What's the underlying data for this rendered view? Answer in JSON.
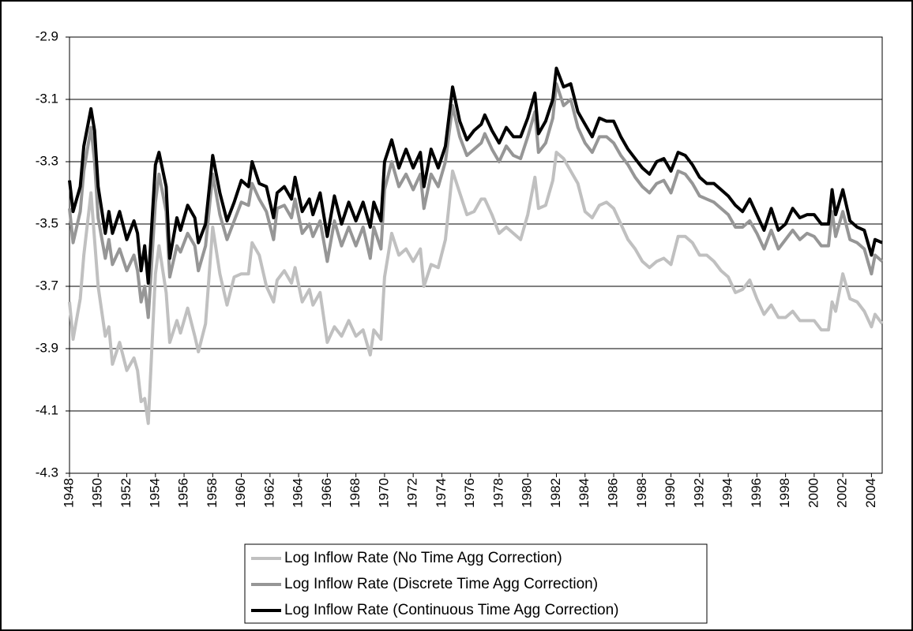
{
  "chart_data": {
    "type": "line",
    "x": [
      1948,
      1948.25,
      1948.75,
      1949,
      1949.5,
      1949.75,
      1950,
      1950.5,
      1950.75,
      1951,
      1951.5,
      1952,
      1952.5,
      1952.75,
      1953,
      1953.25,
      1953.5,
      1954,
      1954.25,
      1954.75,
      1955,
      1955.5,
      1955.75,
      1956.25,
      1956.75,
      1957,
      1957.5,
      1958,
      1958.5,
      1959,
      1959.5,
      1960,
      1960.5,
      1960.75,
      1961.25,
      1961.75,
      1962.25,
      1962.5,
      1963,
      1963.5,
      1963.75,
      1964.25,
      1964.75,
      1965,
      1965.5,
      1966,
      1966.5,
      1967,
      1967.5,
      1968,
      1968.5,
      1969,
      1969.25,
      1969.75,
      1970,
      1970.5,
      1971,
      1971.5,
      1972,
      1972.5,
      1972.75,
      1973.25,
      1973.75,
      1974.25,
      1974.75,
      1975.25,
      1975.75,
      1976.25,
      1976.75,
      1977,
      1977.5,
      1978,
      1978.5,
      1979,
      1979.5,
      1980,
      1980.5,
      1980.75,
      1981.25,
      1981.75,
      1982,
      1982.5,
      1983,
      1983.5,
      1984,
      1984.5,
      1985,
      1985.5,
      1986,
      1986.5,
      1987,
      1987.5,
      1988,
      1988.5,
      1989,
      1989.5,
      1990,
      1990.5,
      1991,
      1991.5,
      1992,
      1992.5,
      1993,
      1993.5,
      1994,
      1994.5,
      1995,
      1995.5,
      1996,
      1996.5,
      1997,
      1997.5,
      1998,
      1998.5,
      1999,
      1999.5,
      2000,
      2000.5,
      2001,
      2001.25,
      2001.5,
      2002,
      2002.5,
      2003,
      2003.5,
      2004,
      2004.25,
      2004.75
    ],
    "series": [
      {
        "name": "Log Inflow Rate (No Time Agg Correction)",
        "color": "#c0c0c0",
        "values": [
          -3.75,
          -3.87,
          -3.74,
          -3.6,
          -3.4,
          -3.55,
          -3.7,
          -3.86,
          -3.83,
          -3.95,
          -3.88,
          -3.97,
          -3.93,
          -3.97,
          -4.07,
          -4.06,
          -4.14,
          -3.66,
          -3.57,
          -3.72,
          -3.88,
          -3.81,
          -3.85,
          -3.77,
          -3.86,
          -3.91,
          -3.82,
          -3.51,
          -3.66,
          -3.76,
          -3.67,
          -3.66,
          -3.66,
          -3.56,
          -3.6,
          -3.7,
          -3.75,
          -3.68,
          -3.65,
          -3.69,
          -3.64,
          -3.75,
          -3.71,
          -3.76,
          -3.72,
          -3.88,
          -3.83,
          -3.86,
          -3.81,
          -3.86,
          -3.84,
          -3.92,
          -3.84,
          -3.87,
          -3.67,
          -3.53,
          -3.6,
          -3.58,
          -3.62,
          -3.58,
          -3.7,
          -3.63,
          -3.64,
          -3.55,
          -3.33,
          -3.4,
          -3.47,
          -3.46,
          -3.42,
          -3.42,
          -3.47,
          -3.53,
          -3.51,
          -3.53,
          -3.55,
          -3.47,
          -3.35,
          -3.45,
          -3.44,
          -3.36,
          -3.27,
          -3.29,
          -3.33,
          -3.37,
          -3.46,
          -3.48,
          -3.44,
          -3.43,
          -3.45,
          -3.5,
          -3.55,
          -3.58,
          -3.62,
          -3.64,
          -3.62,
          -3.61,
          -3.63,
          -3.54,
          -3.54,
          -3.56,
          -3.6,
          -3.6,
          -3.62,
          -3.65,
          -3.67,
          -3.72,
          -3.71,
          -3.68,
          -3.74,
          -3.79,
          -3.76,
          -3.8,
          -3.8,
          -3.78,
          -3.81,
          -3.81,
          -3.81,
          -3.84,
          -3.84,
          -3.75,
          -3.78,
          -3.66,
          -3.74,
          -3.75,
          -3.78,
          -3.83,
          -3.79,
          -3.82
        ]
      },
      {
        "name": "Log Inflow Rate (Discrete Time Agg Correction)",
        "color": "#969696",
        "values": [
          -3.45,
          -3.56,
          -3.46,
          -3.33,
          -3.19,
          -3.3,
          -3.48,
          -3.61,
          -3.55,
          -3.63,
          -3.58,
          -3.65,
          -3.6,
          -3.65,
          -3.75,
          -3.7,
          -3.8,
          -3.43,
          -3.34,
          -3.46,
          -3.67,
          -3.57,
          -3.59,
          -3.53,
          -3.57,
          -3.65,
          -3.57,
          -3.34,
          -3.47,
          -3.55,
          -3.49,
          -3.43,
          -3.44,
          -3.37,
          -3.42,
          -3.46,
          -3.55,
          -3.45,
          -3.44,
          -3.48,
          -3.42,
          -3.53,
          -3.5,
          -3.54,
          -3.49,
          -3.62,
          -3.49,
          -3.57,
          -3.51,
          -3.57,
          -3.51,
          -3.61,
          -3.51,
          -3.58,
          -3.39,
          -3.3,
          -3.38,
          -3.34,
          -3.39,
          -3.34,
          -3.45,
          -3.34,
          -3.38,
          -3.3,
          -3.12,
          -3.22,
          -3.28,
          -3.26,
          -3.24,
          -3.21,
          -3.26,
          -3.3,
          -3.25,
          -3.28,
          -3.29,
          -3.22,
          -3.14,
          -3.27,
          -3.24,
          -3.16,
          -3.05,
          -3.12,
          -3.1,
          -3.19,
          -3.24,
          -3.27,
          -3.22,
          -3.22,
          -3.24,
          -3.28,
          -3.31,
          -3.35,
          -3.38,
          -3.4,
          -3.37,
          -3.36,
          -3.4,
          -3.33,
          -3.34,
          -3.37,
          -3.41,
          -3.42,
          -3.43,
          -3.45,
          -3.47,
          -3.51,
          -3.51,
          -3.49,
          -3.53,
          -3.58,
          -3.52,
          -3.58,
          -3.55,
          -3.52,
          -3.55,
          -3.53,
          -3.54,
          -3.57,
          -3.57,
          -3.46,
          -3.54,
          -3.46,
          -3.55,
          -3.56,
          -3.58,
          -3.66,
          -3.6,
          -3.62
        ]
      },
      {
        "name": "Log Inflow Rate (Continuous Time Agg Correction)",
        "color": "#000000",
        "values": [
          -3.36,
          -3.46,
          -3.38,
          -3.25,
          -3.13,
          -3.2,
          -3.38,
          -3.53,
          -3.46,
          -3.53,
          -3.46,
          -3.55,
          -3.49,
          -3.53,
          -3.65,
          -3.57,
          -3.69,
          -3.31,
          -3.27,
          -3.38,
          -3.61,
          -3.48,
          -3.52,
          -3.44,
          -3.48,
          -3.56,
          -3.5,
          -3.28,
          -3.4,
          -3.49,
          -3.43,
          -3.36,
          -3.38,
          -3.3,
          -3.37,
          -3.38,
          -3.48,
          -3.4,
          -3.38,
          -3.42,
          -3.35,
          -3.46,
          -3.42,
          -3.47,
          -3.4,
          -3.54,
          -3.41,
          -3.5,
          -3.43,
          -3.49,
          -3.43,
          -3.51,
          -3.43,
          -3.49,
          -3.3,
          -3.23,
          -3.32,
          -3.26,
          -3.32,
          -3.27,
          -3.38,
          -3.26,
          -3.32,
          -3.25,
          -3.06,
          -3.17,
          -3.23,
          -3.2,
          -3.18,
          -3.15,
          -3.2,
          -3.24,
          -3.19,
          -3.22,
          -3.22,
          -3.16,
          -3.08,
          -3.21,
          -3.17,
          -3.1,
          -3.0,
          -3.06,
          -3.05,
          -3.14,
          -3.18,
          -3.22,
          -3.16,
          -3.17,
          -3.17,
          -3.22,
          -3.26,
          -3.29,
          -3.32,
          -3.34,
          -3.3,
          -3.29,
          -3.33,
          -3.27,
          -3.28,
          -3.31,
          -3.35,
          -3.37,
          -3.37,
          -3.39,
          -3.41,
          -3.44,
          -3.46,
          -3.42,
          -3.47,
          -3.52,
          -3.45,
          -3.52,
          -3.5,
          -3.45,
          -3.48,
          -3.47,
          -3.47,
          -3.5,
          -3.5,
          -3.39,
          -3.47,
          -3.39,
          -3.49,
          -3.51,
          -3.52,
          -3.6,
          -3.55,
          -3.56
        ]
      }
    ],
    "xlim": [
      1948,
      2004.75
    ],
    "xticks": [
      1948,
      1950,
      1952,
      1954,
      1956,
      1958,
      1960,
      1962,
      1964,
      1966,
      1968,
      1970,
      1972,
      1974,
      1976,
      1978,
      1980,
      1982,
      1984,
      1986,
      1988,
      1990,
      1992,
      1994,
      1996,
      1998,
      2000,
      2002,
      2004
    ],
    "ylim": [
      -4.3,
      -2.9
    ],
    "yticks": [
      -4.3,
      -4.1,
      -3.9,
      -3.7,
      -3.5,
      -3.3,
      -3.1,
      -2.9
    ],
    "grid": true,
    "legend": "bottom"
  }
}
